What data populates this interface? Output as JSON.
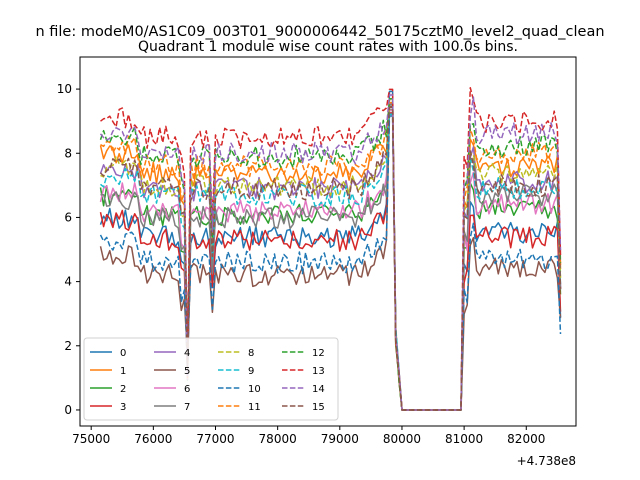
{
  "figure": {
    "suptitle": "n file: modeM0/AS1C09_003T01_9000006442_50175cztM0_level2_quad_clean",
    "title": "Quadrant 1 module wise count rates with 100.0s bins."
  },
  "chart_data": {
    "type": "line",
    "title": "Quadrant 1 module wise count rates with 100.0s bins.",
    "x_offset_label": "+4.738e8",
    "xlim": [
      74820,
      82800
    ],
    "ylim": [
      -0.5,
      11
    ],
    "xticks": [
      75000,
      76000,
      77000,
      78000,
      79000,
      80000,
      81000,
      82000
    ],
    "xtick_labels": [
      "75000",
      "76000",
      "77000",
      "78000",
      "79000",
      "80000",
      "81000",
      "82000"
    ],
    "yticks": [
      0,
      2,
      4,
      6,
      8,
      10
    ],
    "ytick_labels": [
      "0",
      "2",
      "4",
      "6",
      "8",
      "10"
    ],
    "grid": false,
    "legend_position": "lower-left",
    "legend_columns": 4,
    "series": [
      {
        "name": "0",
        "color": "#1f77b4",
        "dash": "solid",
        "base": 5.4,
        "spike": 10.0,
        "p2": 5.5
      },
      {
        "name": "1",
        "color": "#ff7f0e",
        "dash": "solid",
        "base": 7.4,
        "spike": 9.9,
        "p2": 7.6
      },
      {
        "name": "2",
        "color": "#2ca02c",
        "dash": "solid",
        "base": 6.1,
        "spike": 9.7,
        "p2": 6.3
      },
      {
        "name": "3",
        "color": "#d62728",
        "dash": "solid",
        "base": 5.3,
        "spike": 9.6,
        "p2": 5.4
      },
      {
        "name": "4",
        "color": "#9467bd",
        "dash": "solid",
        "base": 6.9,
        "spike": 9.9,
        "p2": 7.1
      },
      {
        "name": "5",
        "color": "#8c564b",
        "dash": "solid",
        "base": 4.2,
        "spike": 9.5,
        "p2": 4.4
      },
      {
        "name": "6",
        "color": "#e377c2",
        "dash": "solid",
        "base": 6.2,
        "spike": 9.6,
        "p2": 6.4
      },
      {
        "name": "7",
        "color": "#7f7f7f",
        "dash": "solid",
        "base": 6.0,
        "spike": 9.9,
        "p2": 6.7
      },
      {
        "name": "8",
        "color": "#bcbd22",
        "dash": "dashed",
        "base": 7.0,
        "spike": 9.8,
        "p2": 7.4
      },
      {
        "name": "9",
        "color": "#17becf",
        "dash": "dashed",
        "base": 6.7,
        "spike": 9.6,
        "p2": 6.9
      },
      {
        "name": "10",
        "color": "#1f77b4",
        "dash": "dashed",
        "base": 4.6,
        "spike": 9.4,
        "p2": 4.7
      },
      {
        "name": "11",
        "color": "#ff7f0e",
        "dash": "dashed",
        "base": 7.6,
        "spike": 9.9,
        "p2": 8.0
      },
      {
        "name": "12",
        "color": "#2ca02c",
        "dash": "dashed",
        "base": 7.9,
        "spike": 10.0,
        "p2": 8.2
      },
      {
        "name": "13",
        "color": "#d62728",
        "dash": "dashed",
        "base": 8.5,
        "spike": 10.1,
        "p2": 9.0
      },
      {
        "name": "14",
        "color": "#9467bd",
        "dash": "dashed",
        "base": 8.0,
        "spike": 10.0,
        "p2": 8.6
      },
      {
        "name": "15",
        "color": "#8c564b",
        "dash": "dashed",
        "base": 6.9,
        "spike": 9.8,
        "p2": 7.0
      }
    ],
    "shape": {
      "x_start": 75150,
      "bin": 100,
      "dip1_x": 76550,
      "dip2_x": 76950,
      "gap_start": 79900,
      "gap_end": 81000,
      "end_x": 82550
    }
  }
}
